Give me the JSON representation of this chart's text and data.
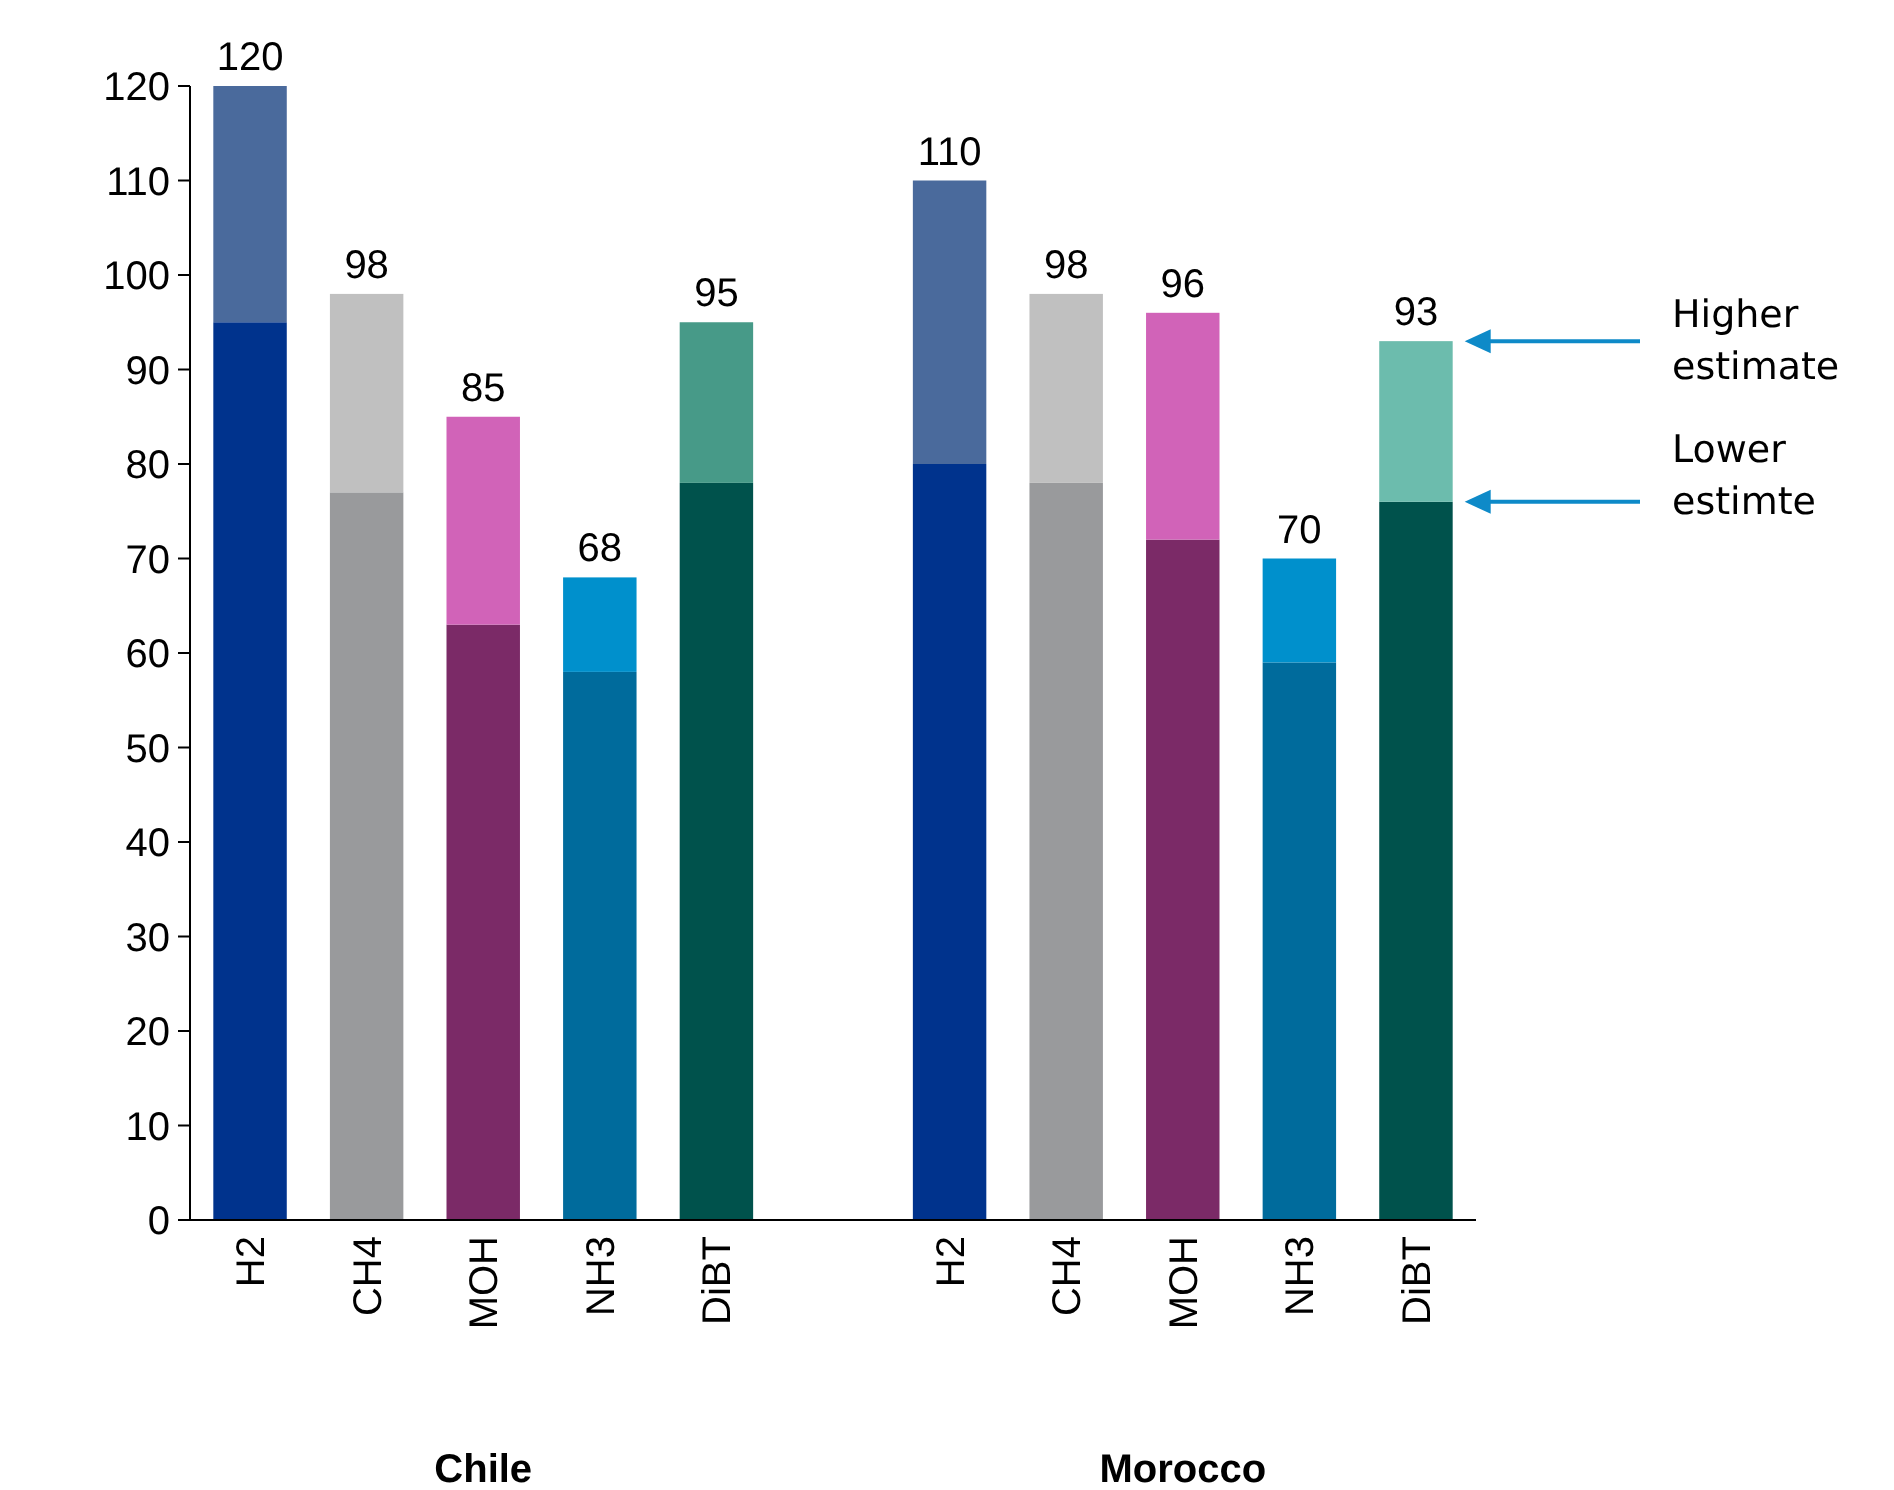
{
  "chart_data": {
    "type": "bar",
    "stacked": true,
    "categories": [
      "H2",
      "CH4",
      "MOH",
      "NH3",
      "DiBT",
      null,
      "H2",
      "CH4",
      "MOH",
      "NH3",
      "DiBT"
    ],
    "series": [
      {
        "colors": [
          "#00338d",
          "#999a9c",
          "#7b2a67",
          "#006b9c",
          "#00524c",
          null,
          "#00338d",
          "#999a9c",
          "#7b2a67",
          "#006b9c",
          "#00524c"
        ],
        "values": [
          95,
          77,
          63,
          58,
          78,
          null,
          80,
          78,
          72,
          59,
          76
        ]
      },
      {
        "colors": [
          "#4a6a9c",
          "#c0c0c0",
          "#d163b8",
          "#0090cc",
          "#479a88",
          null,
          "#4a6a9c",
          "#c0c0c0",
          "#d163b8",
          "#0090cc",
          "#6cbcad"
        ],
        "values": [
          25,
          21,
          22,
          10,
          17,
          null,
          30,
          20,
          24,
          11,
          17
        ]
      }
    ],
    "totals": [
      "120",
      "98",
      "85",
      "68",
      "95",
      null,
      "110",
      "98",
      "96",
      "70",
      "93"
    ],
    "ylim": [
      0,
      120
    ],
    "yticks": [
      0,
      10,
      20,
      30,
      40,
      50,
      60,
      70,
      80,
      90,
      100,
      110,
      120
    ],
    "grid": false,
    "annotations": [
      "Chile",
      "Morocco",
      "Higher estimate",
      "Lower estimte"
    ]
  }
}
